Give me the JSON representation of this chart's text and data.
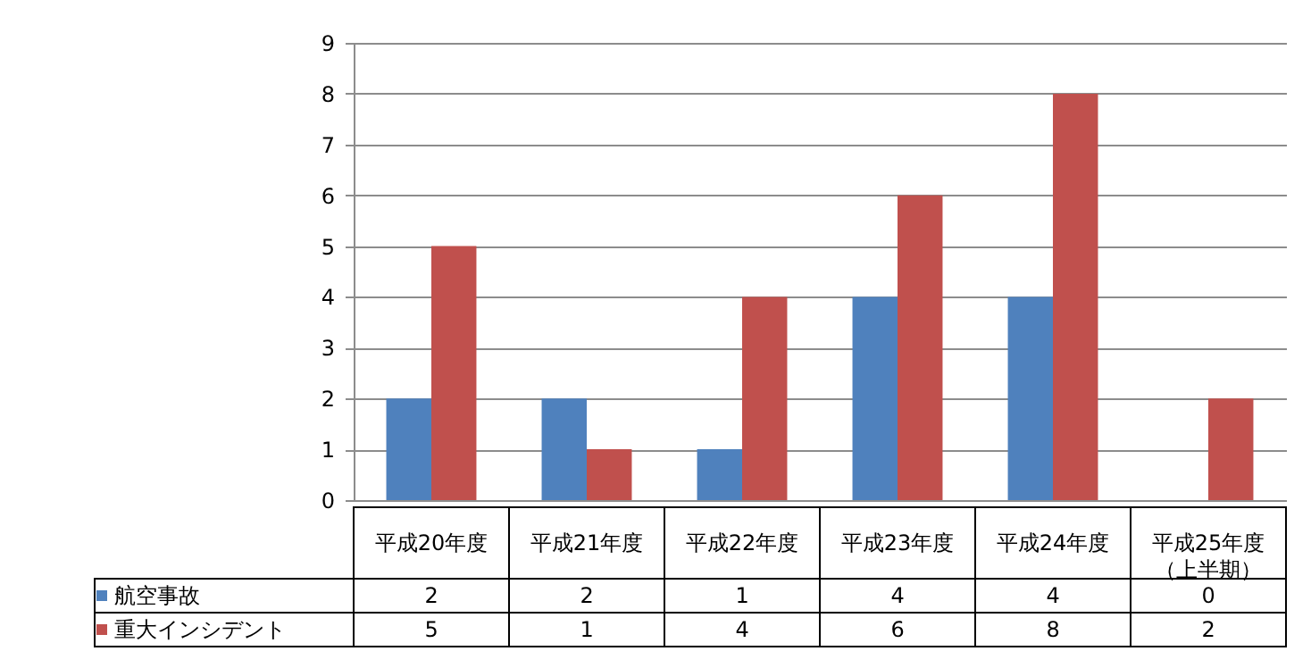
{
  "chart_data": {
    "type": "bar",
    "categories": [
      "平成20年度",
      "平成21年度",
      "平成22年度",
      "平成23年度",
      "平成24年度",
      "平成25年度（上半期）"
    ],
    "series": [
      {
        "name": "航空事故",
        "color": "#4f81bd",
        "values": [
          2,
          2,
          1,
          4,
          4,
          0
        ]
      },
      {
        "name": "重大インシデント",
        "color": "#c0504d",
        "values": [
          5,
          1,
          4,
          6,
          8,
          2
        ]
      }
    ],
    "ylim": [
      0,
      9
    ],
    "yticks": [
      0,
      1,
      2,
      3,
      4,
      5,
      6,
      7,
      8,
      9
    ],
    "grid": "y",
    "data_labels": true,
    "legend": "bottom left"
  }
}
